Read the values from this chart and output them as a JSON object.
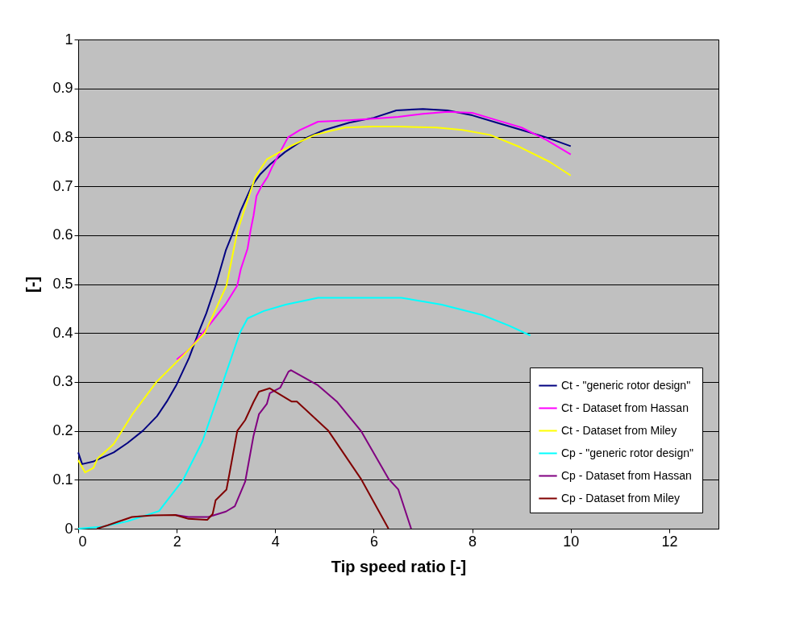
{
  "chart_data": {
    "type": "line",
    "xlabel": "Tip speed ratio [-]",
    "ylabel": "[-]",
    "xlim": [
      0,
      13
    ],
    "ylim": [
      0,
      1
    ],
    "xticks": [
      0,
      2,
      4,
      6,
      8,
      10,
      12
    ],
    "yticks": [
      0,
      0.1,
      0.2,
      0.3,
      0.4,
      0.5,
      0.6,
      0.7,
      0.8,
      0.9,
      1
    ],
    "grid": "y",
    "legend": "bottom right",
    "marker": "none",
    "line_style": "solid",
    "series": [
      {
        "name": "Ct - \"generic rotor design\"",
        "color": "#000080",
        "x": [
          0,
          0.08,
          0.3,
          0.72,
          1.0,
          1.31,
          1.6,
          1.8,
          2.0,
          2.25,
          2.44,
          2.6,
          2.8,
          3.0,
          3.12,
          3.3,
          3.52,
          3.7,
          3.9,
          4.2,
          4.65,
          5.0,
          5.5,
          6.0,
          6.46,
          7.0,
          7.5,
          8.0,
          8.5,
          9.0,
          9.5,
          10
        ],
        "values": [
          0.156,
          0.132,
          0.137,
          0.156,
          0.175,
          0.2,
          0.23,
          0.26,
          0.295,
          0.349,
          0.4,
          0.44,
          0.5,
          0.57,
          0.6,
          0.65,
          0.7,
          0.725,
          0.745,
          0.77,
          0.8,
          0.815,
          0.83,
          0.84,
          0.855,
          0.858,
          0.855,
          0.845,
          0.83,
          0.815,
          0.8,
          0.782
        ]
      },
      {
        "name": "Ct - Dataset from Hassan",
        "color": "#ff00ff",
        "x": [
          2.0,
          2.25,
          2.69,
          3.0,
          3.23,
          3.3,
          3.44,
          3.5,
          3.56,
          3.62,
          3.72,
          3.85,
          3.93,
          4.1,
          4.26,
          4.5,
          4.87,
          5.5,
          6.0,
          6.5,
          7.0,
          7.5,
          8.0,
          8.5,
          9.0,
          9.5,
          10
        ],
        "values": [
          0.346,
          0.366,
          0.42,
          0.46,
          0.497,
          0.53,
          0.573,
          0.61,
          0.64,
          0.68,
          0.7,
          0.72,
          0.738,
          0.77,
          0.8,
          0.815,
          0.832,
          0.835,
          0.838,
          0.842,
          0.848,
          0.852,
          0.85,
          0.835,
          0.82,
          0.795,
          0.765
        ]
      },
      {
        "name": "Ct - Dataset from Miley",
        "color": "#ffff00",
        "x": [
          0,
          0.14,
          0.31,
          0.39,
          0.72,
          1.1,
          1.59,
          2.13,
          2.57,
          2.79,
          3.01,
          3.23,
          3.44,
          3.6,
          3.83,
          4.33,
          4.8,
          5.41,
          6.0,
          6.5,
          7.28,
          7.8,
          8.36,
          8.97,
          9.57,
          10
        ],
        "values": [
          0.14,
          0.115,
          0.124,
          0.143,
          0.173,
          0.234,
          0.3,
          0.354,
          0.4,
          0.448,
          0.497,
          0.607,
          0.672,
          0.72,
          0.755,
          0.783,
          0.805,
          0.82,
          0.822,
          0.822,
          0.82,
          0.815,
          0.805,
          0.78,
          0.75,
          0.722
        ]
      },
      {
        "name": "Cp - \"generic rotor design\"",
        "color": "#00ffff",
        "x": [
          0,
          0.5,
          1.0,
          1.64,
          2.13,
          2.52,
          2.9,
          3.28,
          3.44,
          3.77,
          4.21,
          4.87,
          5.5,
          6.0,
          6.56,
          7.38,
          8.2,
          8.75,
          9.18
        ],
        "values": [
          0,
          0.004,
          0.015,
          0.036,
          0.1,
          0.178,
          0.288,
          0.4,
          0.43,
          0.445,
          0.458,
          0.472,
          0.472,
          0.472,
          0.472,
          0.458,
          0.437,
          0.415,
          0.395
        ]
      },
      {
        "name": "Cp - Dataset from Hassan",
        "color": "#800080",
        "x": [
          1.97,
          2.24,
          2.64,
          3.0,
          3.18,
          3.23,
          3.39,
          3.56,
          3.67,
          3.83,
          3.89,
          4.1,
          4.27,
          4.32,
          4.87,
          5.25,
          5.74,
          6.3,
          6.5,
          6.76
        ],
        "values": [
          0.028,
          0.024,
          0.024,
          0.035,
          0.046,
          0.058,
          0.096,
          0.19,
          0.234,
          0.255,
          0.277,
          0.288,
          0.321,
          0.324,
          0.293,
          0.26,
          0.2,
          0.102,
          0.08,
          0
        ]
      },
      {
        "name": "Cp - Dataset from Miley",
        "color": "#800000",
        "x": [
          0.38,
          0.6,
          1.09,
          1.5,
          1.97,
          2.24,
          2.62,
          2.73,
          2.79,
          3.01,
          3.07,
          3.23,
          3.39,
          3.56,
          3.67,
          3.89,
          4.33,
          4.44,
          5.08,
          5.74,
          6.3
        ],
        "values": [
          0,
          0.007,
          0.024,
          0.027,
          0.028,
          0.02,
          0.018,
          0.03,
          0.058,
          0.08,
          0.112,
          0.2,
          0.222,
          0.259,
          0.28,
          0.287,
          0.26,
          0.26,
          0.2,
          0.102,
          0
        ]
      }
    ]
  }
}
